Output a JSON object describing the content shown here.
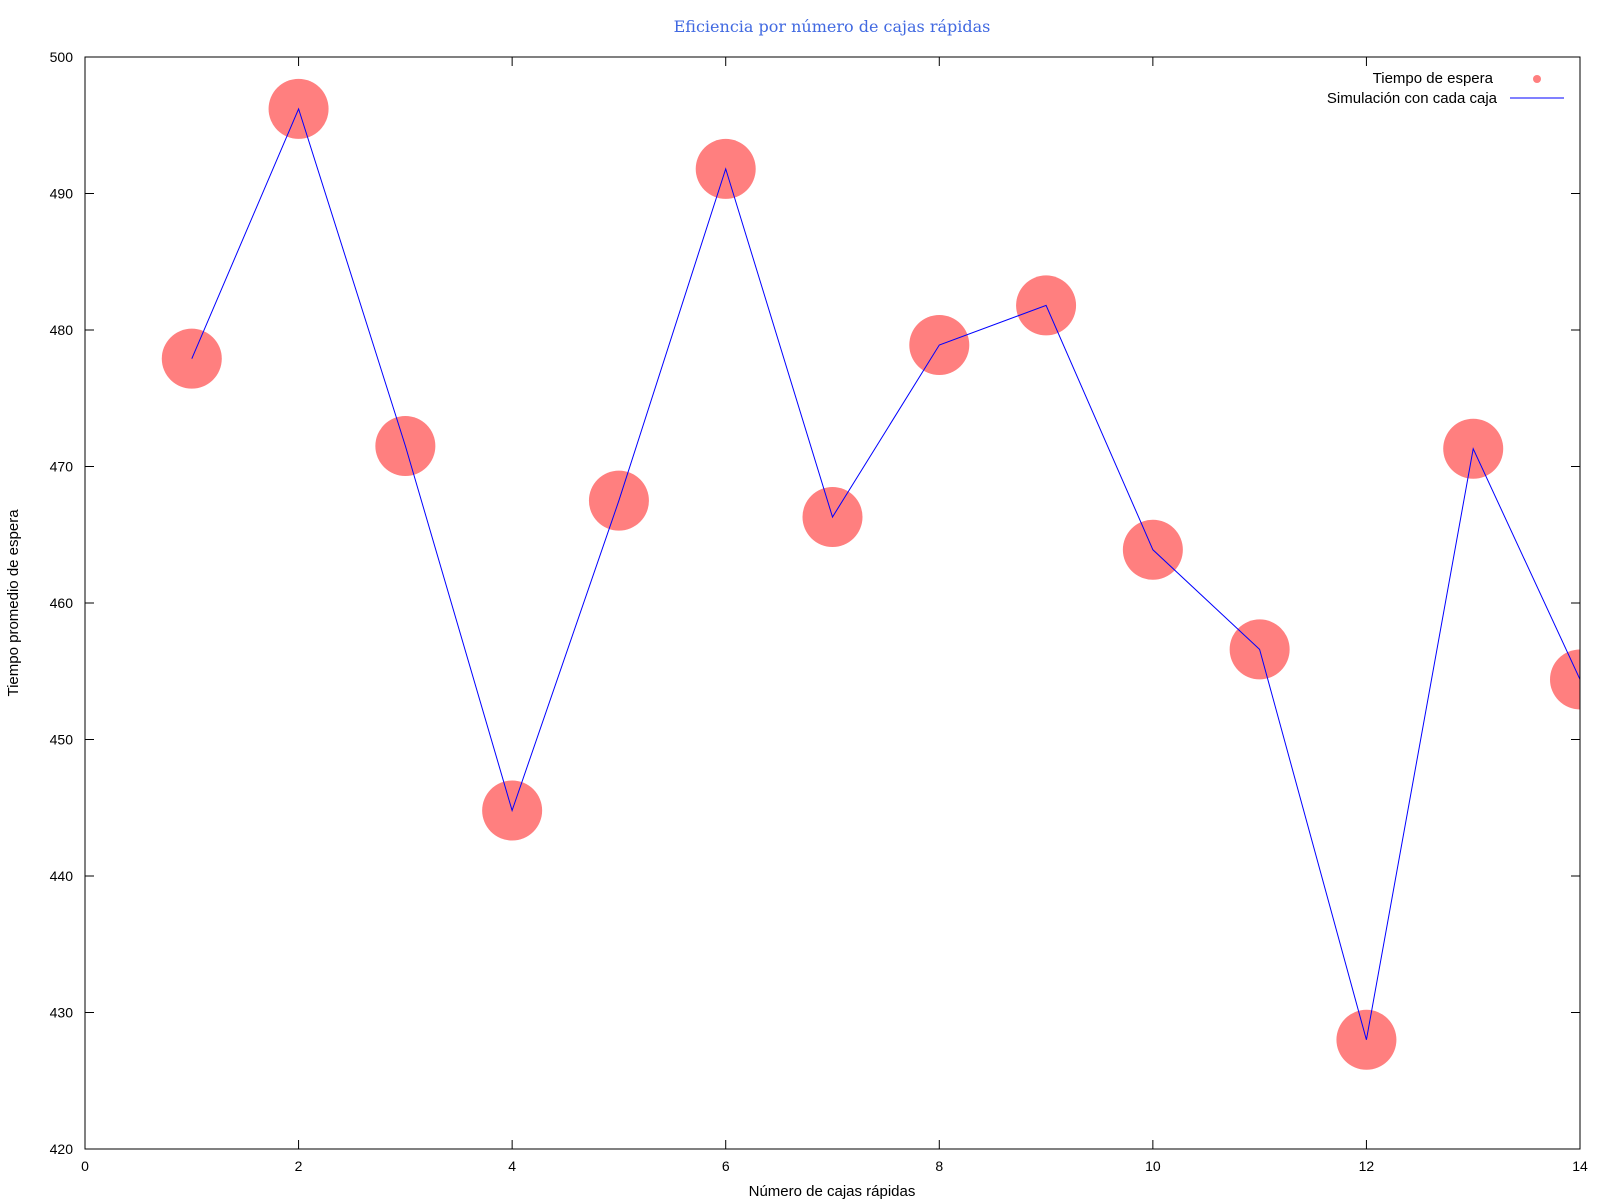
{
  "chart_data": {
    "type": "scatter",
    "title": "Eficiencia por número de cajas rápidas",
    "xlabel": "Número de cajas rápidas",
    "ylabel": "Tiempo promedio de espera",
    "xlim": [
      0,
      14
    ],
    "ylim": [
      420,
      500
    ],
    "xticks": [
      0,
      2,
      4,
      6,
      8,
      10,
      12,
      14
    ],
    "yticks": [
      420,
      430,
      440,
      450,
      460,
      470,
      480,
      490,
      500
    ],
    "grid": false,
    "legend_position": "top-right",
    "x": [
      1,
      2,
      3,
      4,
      5,
      6,
      7,
      8,
      9,
      10,
      11,
      12,
      13,
      14
    ],
    "series": [
      {
        "name": "Tiempo de espera",
        "kind": "points",
        "color": "#ff7f7f",
        "values": [
          477.9,
          496.2,
          471.5,
          444.8,
          467.5,
          491.8,
          466.3,
          478.9,
          481.8,
          463.9,
          456.6,
          428.0,
          471.3,
          454.4
        ]
      },
      {
        "name": "Simulación con cada caja",
        "kind": "line",
        "color": "#0000ff",
        "values": [
          477.9,
          496.2,
          471.5,
          444.8,
          467.5,
          491.8,
          466.3,
          478.9,
          481.8,
          463.9,
          456.6,
          428.0,
          471.3,
          454.4
        ]
      }
    ]
  }
}
